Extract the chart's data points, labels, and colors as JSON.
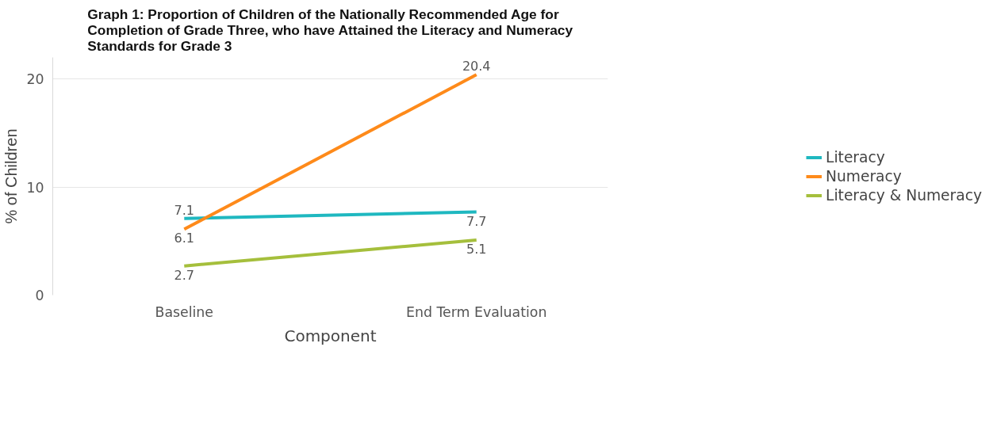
{
  "chart_data": {
    "type": "line",
    "title": "Graph 1: Proportion of Children of the Nationally Recommended Age for Completion of Grade Three, who have Attained the Literacy and Numeracy Standards for Grade 3",
    "xlabel": "Component",
    "ylabel": "% of Children",
    "categories": [
      "Baseline",
      "End Term Evaluation"
    ],
    "series": [
      {
        "name": "Literacy",
        "color": "#1fb8c0",
        "values": [
          7.1,
          7.7
        ]
      },
      {
        "name": "Numeracy",
        "color": "#fe8a1a",
        "values": [
          6.1,
          20.4
        ]
      },
      {
        "name": "Literacy & Numeracy",
        "color": "#a5bf3c",
        "values": [
          2.7,
          5.1
        ]
      }
    ],
    "ylim": [
      0,
      22
    ],
    "yticks": [
      0,
      10,
      20
    ],
    "grid": "y",
    "legend": "right",
    "marker": "none",
    "line_style": "solid",
    "data_labels": true
  }
}
